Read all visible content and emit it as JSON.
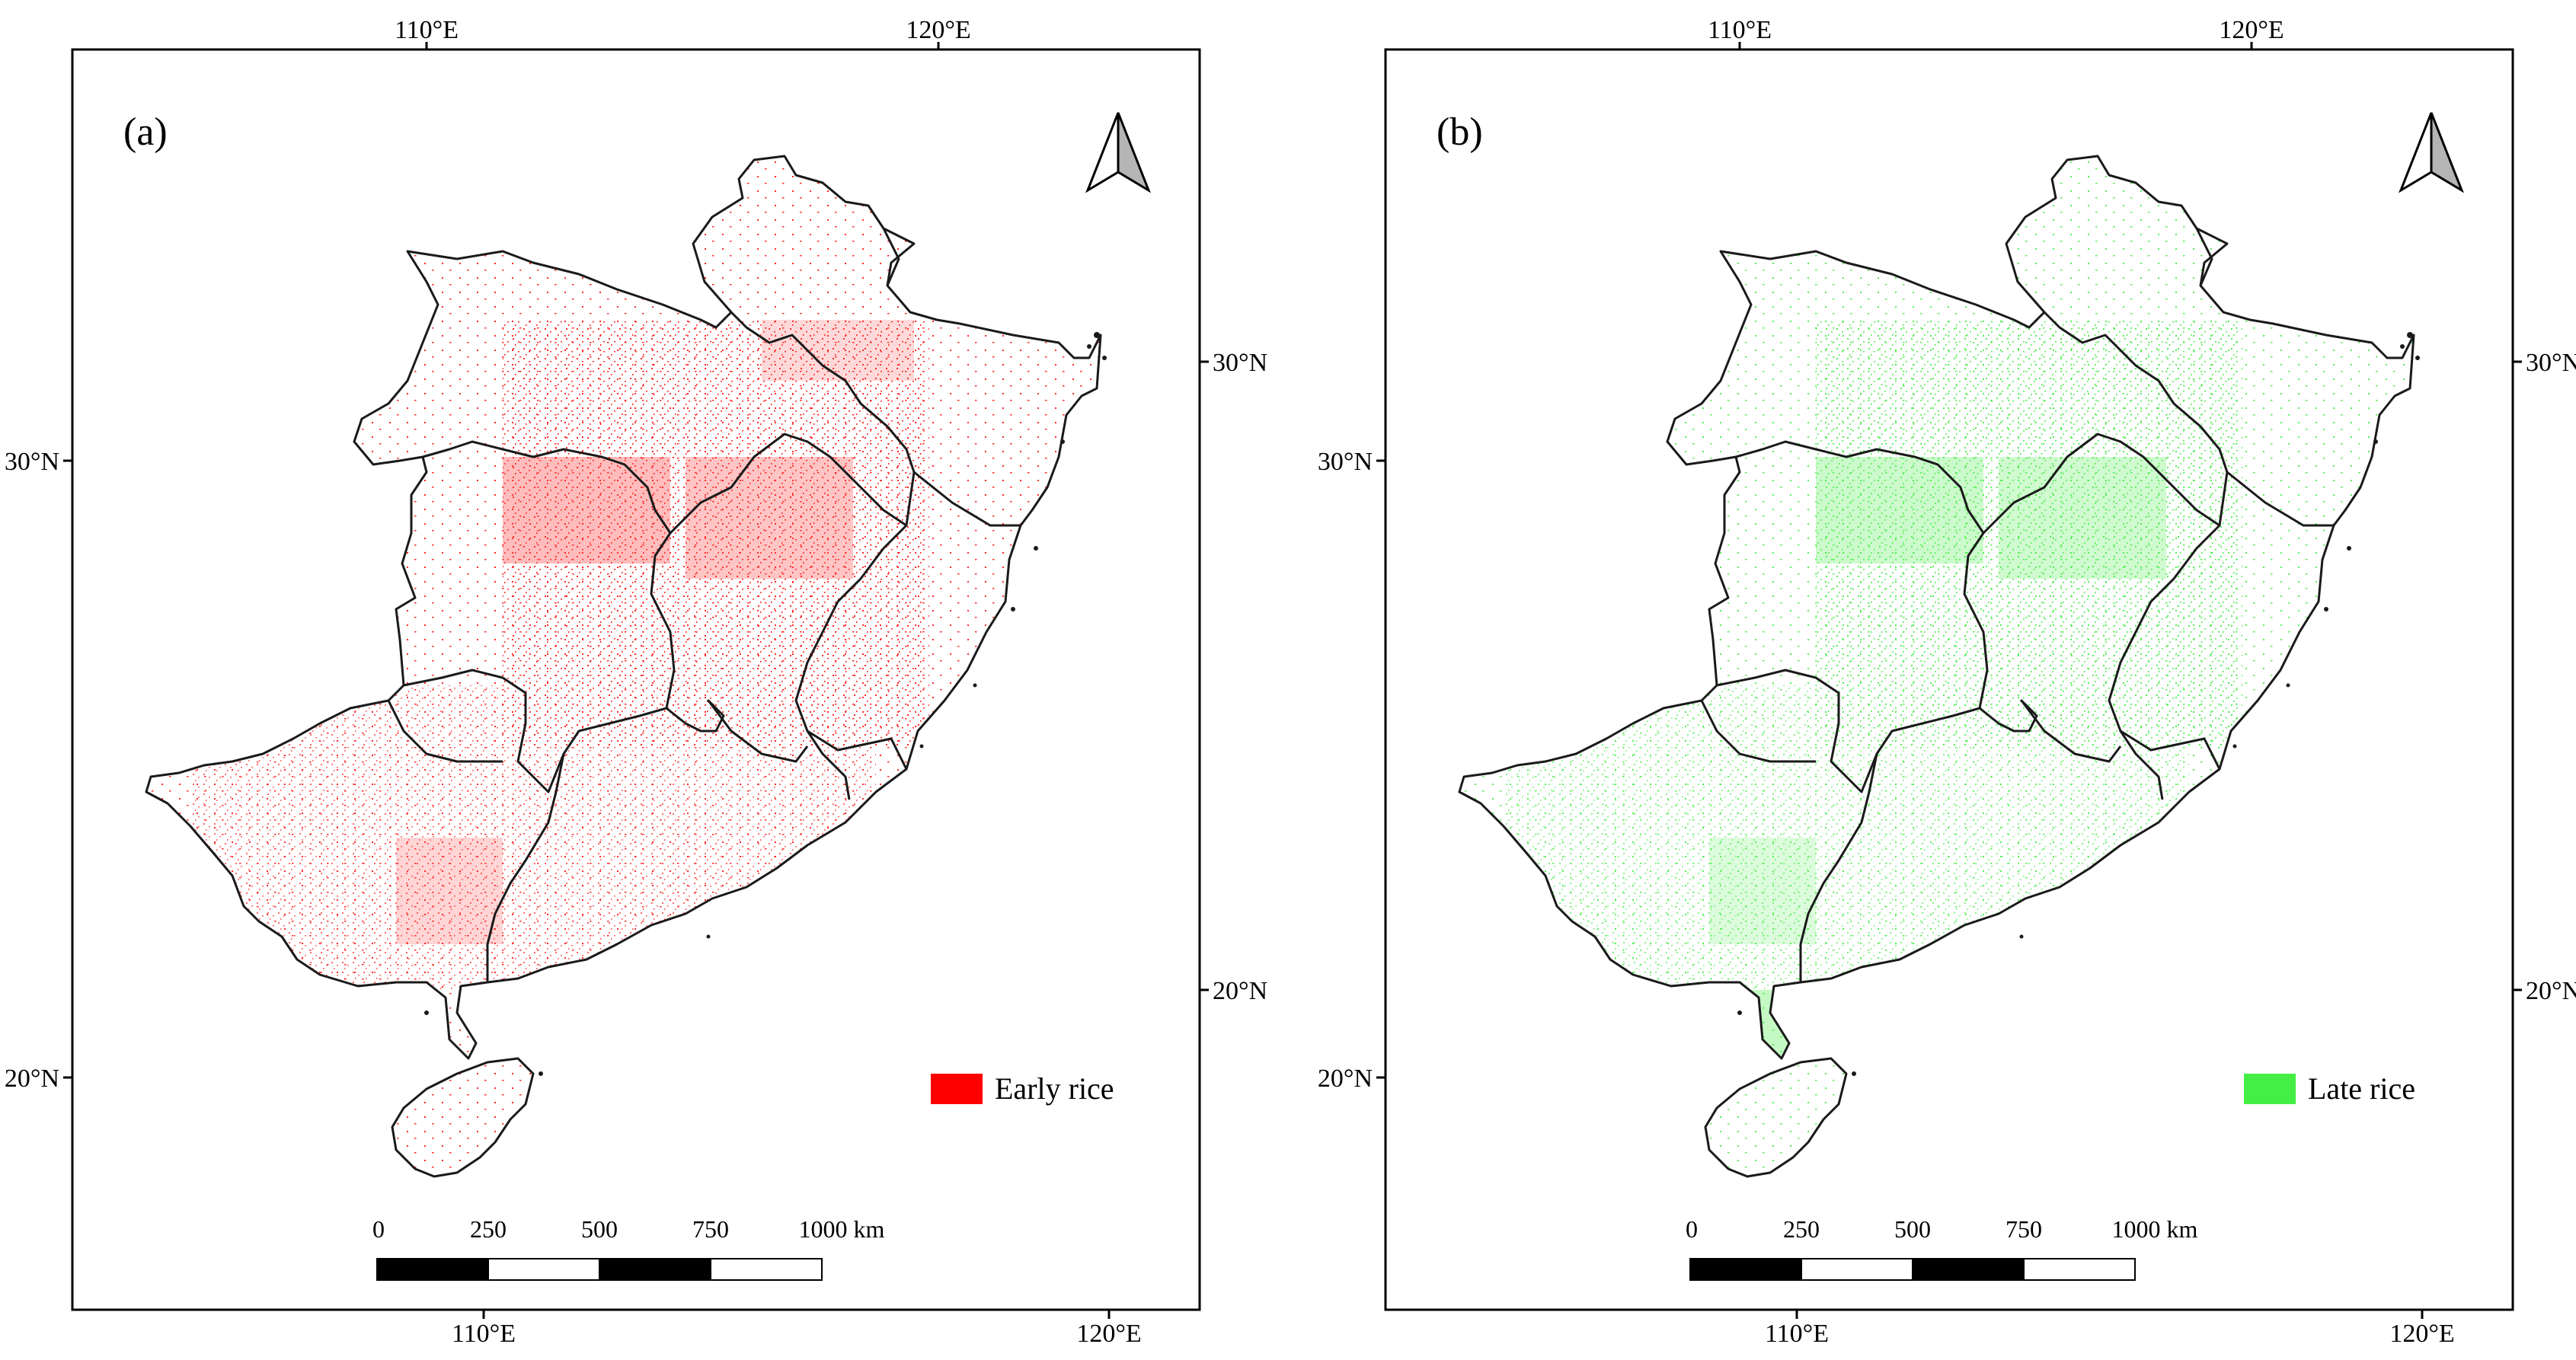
{
  "panels": [
    {
      "label": "(a)",
      "legend_label": "Early rice",
      "legend_color": "#ff0000",
      "dot_color": "#ff2a2a",
      "top_ticks": [
        "110°E",
        "120°E"
      ],
      "bottom_ticks": [
        "110°E",
        "120°E"
      ],
      "left_ticks": [
        "30°N",
        "20°N"
      ],
      "right_ticks": [
        "30°N",
        "20°N"
      ],
      "scale_labels": [
        "0",
        "250",
        "500",
        "750",
        "1000 km"
      ]
    },
    {
      "label": "(b)",
      "legend_label": "Late rice",
      "legend_color": "#44ee44",
      "dot_color": "#55ee55",
      "top_ticks": [
        "110°E",
        "120°E"
      ],
      "bottom_ticks": [
        "110°E",
        "120°E"
      ],
      "left_ticks": [
        "30°N",
        "20°N"
      ],
      "right_ticks": [
        "30°N",
        "20°N"
      ],
      "scale_labels": [
        "0",
        "250",
        "500",
        "750",
        "1000 km"
      ]
    }
  ]
}
